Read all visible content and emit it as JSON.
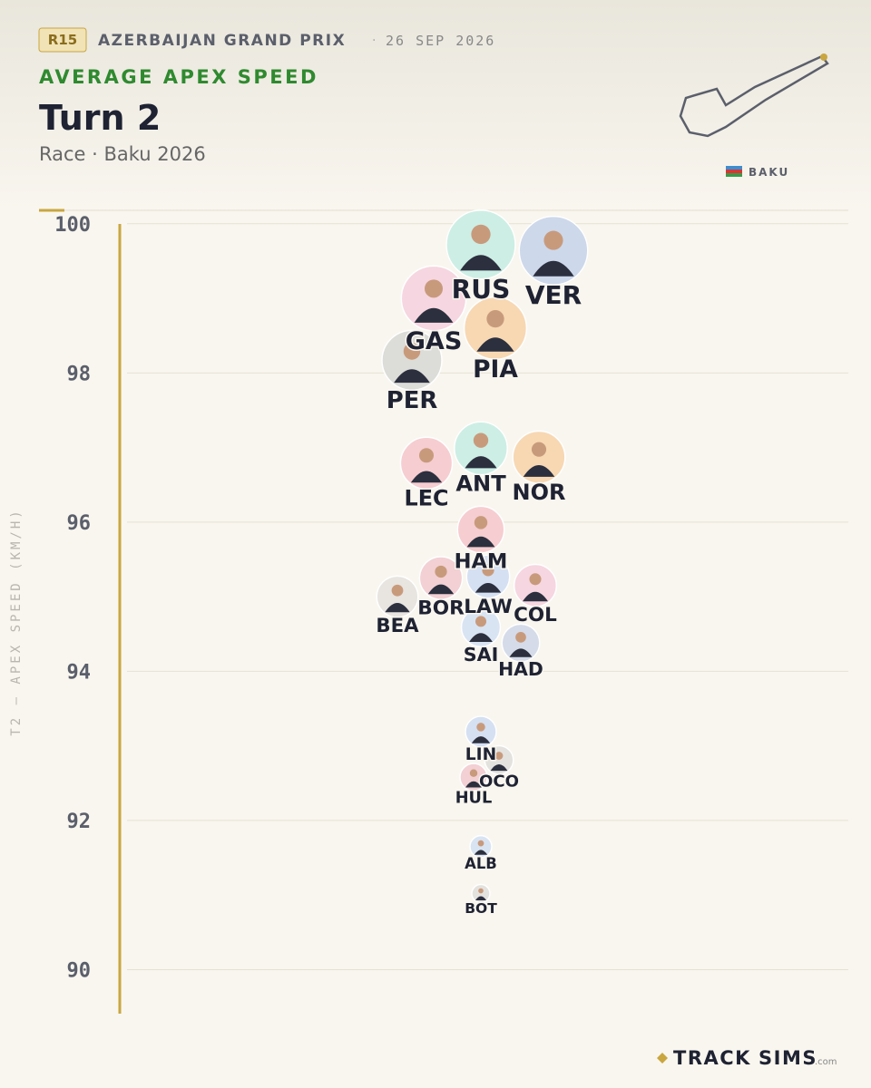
{
  "chart_data": {
    "type": "beeswarm",
    "badge": "R15",
    "event": "AZERBAIJAN GRAND PRIX",
    "date": "26 SEP 2026",
    "kicker": "AVERAGE APEX SPEED",
    "title": "Turn 2",
    "subtitle": "Race · Baku 2026",
    "location": "BAKU",
    "y_label": "T2 — APEX SPEED (KM/H)",
    "brand": [
      "TRACK",
      "SIMS",
      ".com"
    ],
    "categories": [
      "VER",
      "RUS",
      "GAS",
      "PIA",
      "PER",
      "NOR",
      "ANT",
      "LEC",
      "HAM",
      "COL",
      "BOR",
      "LAW",
      "BEA",
      "SAI",
      "HAD",
      "LIN",
      "OCO",
      "HUL",
      "ALB",
      "BOT"
    ],
    "values": [
      99.64,
      99.72,
      99.0,
      98.6,
      98.17,
      96.87,
      96.99,
      96.79,
      95.9,
      95.15,
      95.25,
      95.27,
      95.0,
      94.59,
      94.38,
      93.19,
      92.81,
      92.58,
      91.65,
      91.02
    ],
    "colors": [
      "#cdd8ea",
      "#cdeee4",
      "#f6d6e0",
      "#f7d8b3",
      "#dcdcd8",
      "#f7d8b3",
      "#cdeee4",
      "#f6cdd0",
      "#f6cdd0",
      "#f6d6e0",
      "#f2d0d3",
      "#d5e0f2",
      "#e8e4e0",
      "#d9e4f2",
      "#d5dbe8",
      "#d5e0f2",
      "#e4e2de",
      "#f2d0d3",
      "#d9e4f2",
      "#e4e2de"
    ],
    "ylim": [
      89.58,
      100.18
    ],
    "yticks": [
      90,
      92,
      94,
      96,
      98,
      100
    ],
    "grid": true
  }
}
